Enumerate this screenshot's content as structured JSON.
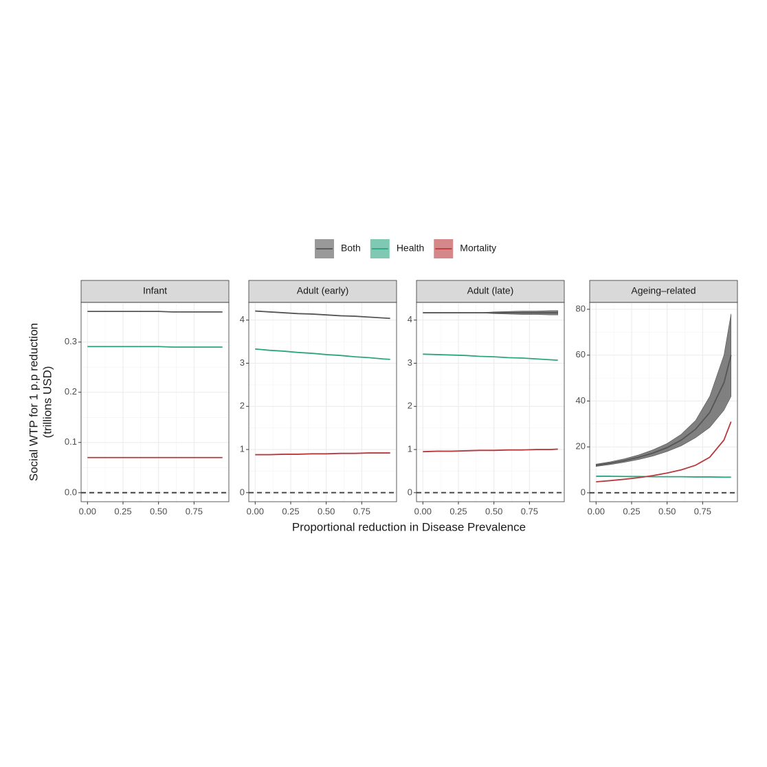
{
  "y_label": [
    "Social WTP for 1 p.p reduction",
    "(trillions USD)"
  ],
  "x_label": "Proportional reduction in Disease Prevalence",
  "chart_data": [
    {
      "type": "line",
      "title": "Infant",
      "x": [
        0,
        0.1,
        0.2,
        0.3,
        0.4,
        0.5,
        0.6,
        0.7,
        0.8,
        0.9,
        0.95
      ],
      "series": [
        {
          "name": "Both",
          "color": "#555555",
          "values": [
            0.361,
            0.361,
            0.361,
            0.361,
            0.361,
            0.361,
            0.36,
            0.36,
            0.36,
            0.36,
            0.36
          ]
        },
        {
          "name": "Health",
          "color": "#2aa57f",
          "values": [
            0.291,
            0.291,
            0.291,
            0.291,
            0.291,
            0.291,
            0.29,
            0.29,
            0.29,
            0.29,
            0.29
          ]
        },
        {
          "name": "Mortality",
          "color": "#b8393b",
          "values": [
            0.07,
            0.07,
            0.07,
            0.07,
            0.07,
            0.07,
            0.07,
            0.07,
            0.07,
            0.07,
            0.07
          ]
        }
      ],
      "xlim": [
        -0.045,
        0.995
      ],
      "ylim": [
        -0.018,
        0.379
      ],
      "xticks": [
        {
          "value": 0,
          "label": "0.00"
        },
        {
          "value": 0.25,
          "label": "0.25"
        },
        {
          "value": 0.5,
          "label": "0.50"
        },
        {
          "value": 0.75,
          "label": "0.75"
        }
      ],
      "yticks": [
        {
          "value": 0,
          "label": "0.0"
        },
        0.1,
        0.2,
        0.3
      ],
      "hline": 0,
      "grid": true
    },
    {
      "type": "line",
      "title": "Adult (early)",
      "x": [
        0,
        0.1,
        0.2,
        0.3,
        0.4,
        0.5,
        0.6,
        0.7,
        0.8,
        0.9,
        0.95
      ],
      "series": [
        {
          "name": "Both",
          "color": "#555555",
          "values": [
            4.21,
            4.19,
            4.17,
            4.15,
            4.14,
            4.12,
            4.1,
            4.09,
            4.07,
            4.05,
            4.04
          ]
        },
        {
          "name": "Health",
          "color": "#2aa57f",
          "values": [
            3.33,
            3.3,
            3.28,
            3.25,
            3.23,
            3.2,
            3.18,
            3.15,
            3.13,
            3.1,
            3.09
          ]
        },
        {
          "name": "Mortality",
          "color": "#b8393b",
          "values": [
            0.88,
            0.88,
            0.89,
            0.89,
            0.9,
            0.9,
            0.91,
            0.91,
            0.92,
            0.92,
            0.92
          ]
        }
      ],
      "xlim": [
        -0.045,
        0.995
      ],
      "ylim": [
        -0.21,
        4.41
      ],
      "xticks": [
        {
          "value": 0,
          "label": "0.00"
        },
        {
          "value": 0.25,
          "label": "0.25"
        },
        {
          "value": 0.5,
          "label": "0.50"
        },
        {
          "value": 0.75,
          "label": "0.75"
        }
      ],
      "yticks": [
        0,
        1,
        2,
        3,
        4
      ],
      "hline": 0,
      "grid": true
    },
    {
      "type": "line",
      "title": "Adult (late)",
      "x": [
        0,
        0.1,
        0.2,
        0.3,
        0.4,
        0.5,
        0.6,
        0.7,
        0.8,
        0.9,
        0.95
      ],
      "series": [
        {
          "name": "Both",
          "color": "#555555",
          "values": [
            4.17,
            4.17,
            4.17,
            4.17,
            4.17,
            4.17,
            4.17,
            4.17,
            4.17,
            4.17,
            4.17
          ],
          "upper": [
            4.17,
            4.17,
            4.17,
            4.17,
            4.17,
            4.19,
            4.2,
            4.21,
            4.21,
            4.22,
            4.22
          ],
          "lower": [
            4.17,
            4.17,
            4.17,
            4.17,
            4.17,
            4.15,
            4.14,
            4.13,
            4.13,
            4.12,
            4.12
          ]
        },
        {
          "name": "Health",
          "color": "#2aa57f",
          "values": [
            3.21,
            3.2,
            3.19,
            3.18,
            3.16,
            3.15,
            3.13,
            3.12,
            3.1,
            3.08,
            3.07
          ]
        },
        {
          "name": "Mortality",
          "color": "#b8393b",
          "values": [
            0.95,
            0.96,
            0.96,
            0.97,
            0.98,
            0.98,
            0.99,
            0.99,
            1.0,
            1.0,
            1.01
          ]
        }
      ],
      "xlim": [
        -0.045,
        0.995
      ],
      "ylim": [
        -0.21,
        4.41
      ],
      "xticks": [
        {
          "value": 0,
          "label": "0.00"
        },
        {
          "value": 0.25,
          "label": "0.25"
        },
        {
          "value": 0.5,
          "label": "0.50"
        },
        {
          "value": 0.75,
          "label": "0.75"
        }
      ],
      "yticks": [
        0,
        1,
        2,
        3,
        4
      ],
      "hline": 0,
      "grid": true
    },
    {
      "type": "line",
      "title": "Ageing–related",
      "x": [
        0,
        0.1,
        0.2,
        0.3,
        0.4,
        0.5,
        0.6,
        0.7,
        0.8,
        0.9,
        0.95
      ],
      "series": [
        {
          "name": "Both",
          "color": "#555555",
          "values": [
            12,
            12.9,
            14,
            15.5,
            17.3,
            19.7,
            23,
            27.7,
            35,
            48,
            60
          ],
          "upper": [
            12.5,
            13.5,
            14.8,
            16.5,
            18.7,
            21.5,
            25.5,
            31.5,
            42,
            60,
            78
          ],
          "lower": [
            11.5,
            12.3,
            13.3,
            14.5,
            16,
            18,
            20.5,
            24,
            28.5,
            36,
            42
          ]
        },
        {
          "name": "Health",
          "color": "#2aa57f",
          "values": [
            7.2,
            7.2,
            7.1,
            7.1,
            7.0,
            7.0,
            7.0,
            6.9,
            6.9,
            6.8,
            6.8
          ]
        },
        {
          "name": "Mortality",
          "color": "#b8393b",
          "values": [
            4.8,
            5.3,
            5.9,
            6.6,
            7.5,
            8.6,
            10.0,
            12.0,
            15.5,
            23,
            31
          ]
        }
      ],
      "xlim": [
        -0.045,
        0.995
      ],
      "ylim": [
        -3.9,
        83
      ],
      "xticks": [
        {
          "value": 0,
          "label": "0.00"
        },
        {
          "value": 0.25,
          "label": "0.25"
        },
        {
          "value": 0.5,
          "label": "0.50"
        },
        {
          "value": 0.75,
          "label": "0.75"
        }
      ],
      "yticks": [
        0,
        20,
        40,
        60,
        80
      ],
      "hline": 0,
      "grid": true
    }
  ]
}
